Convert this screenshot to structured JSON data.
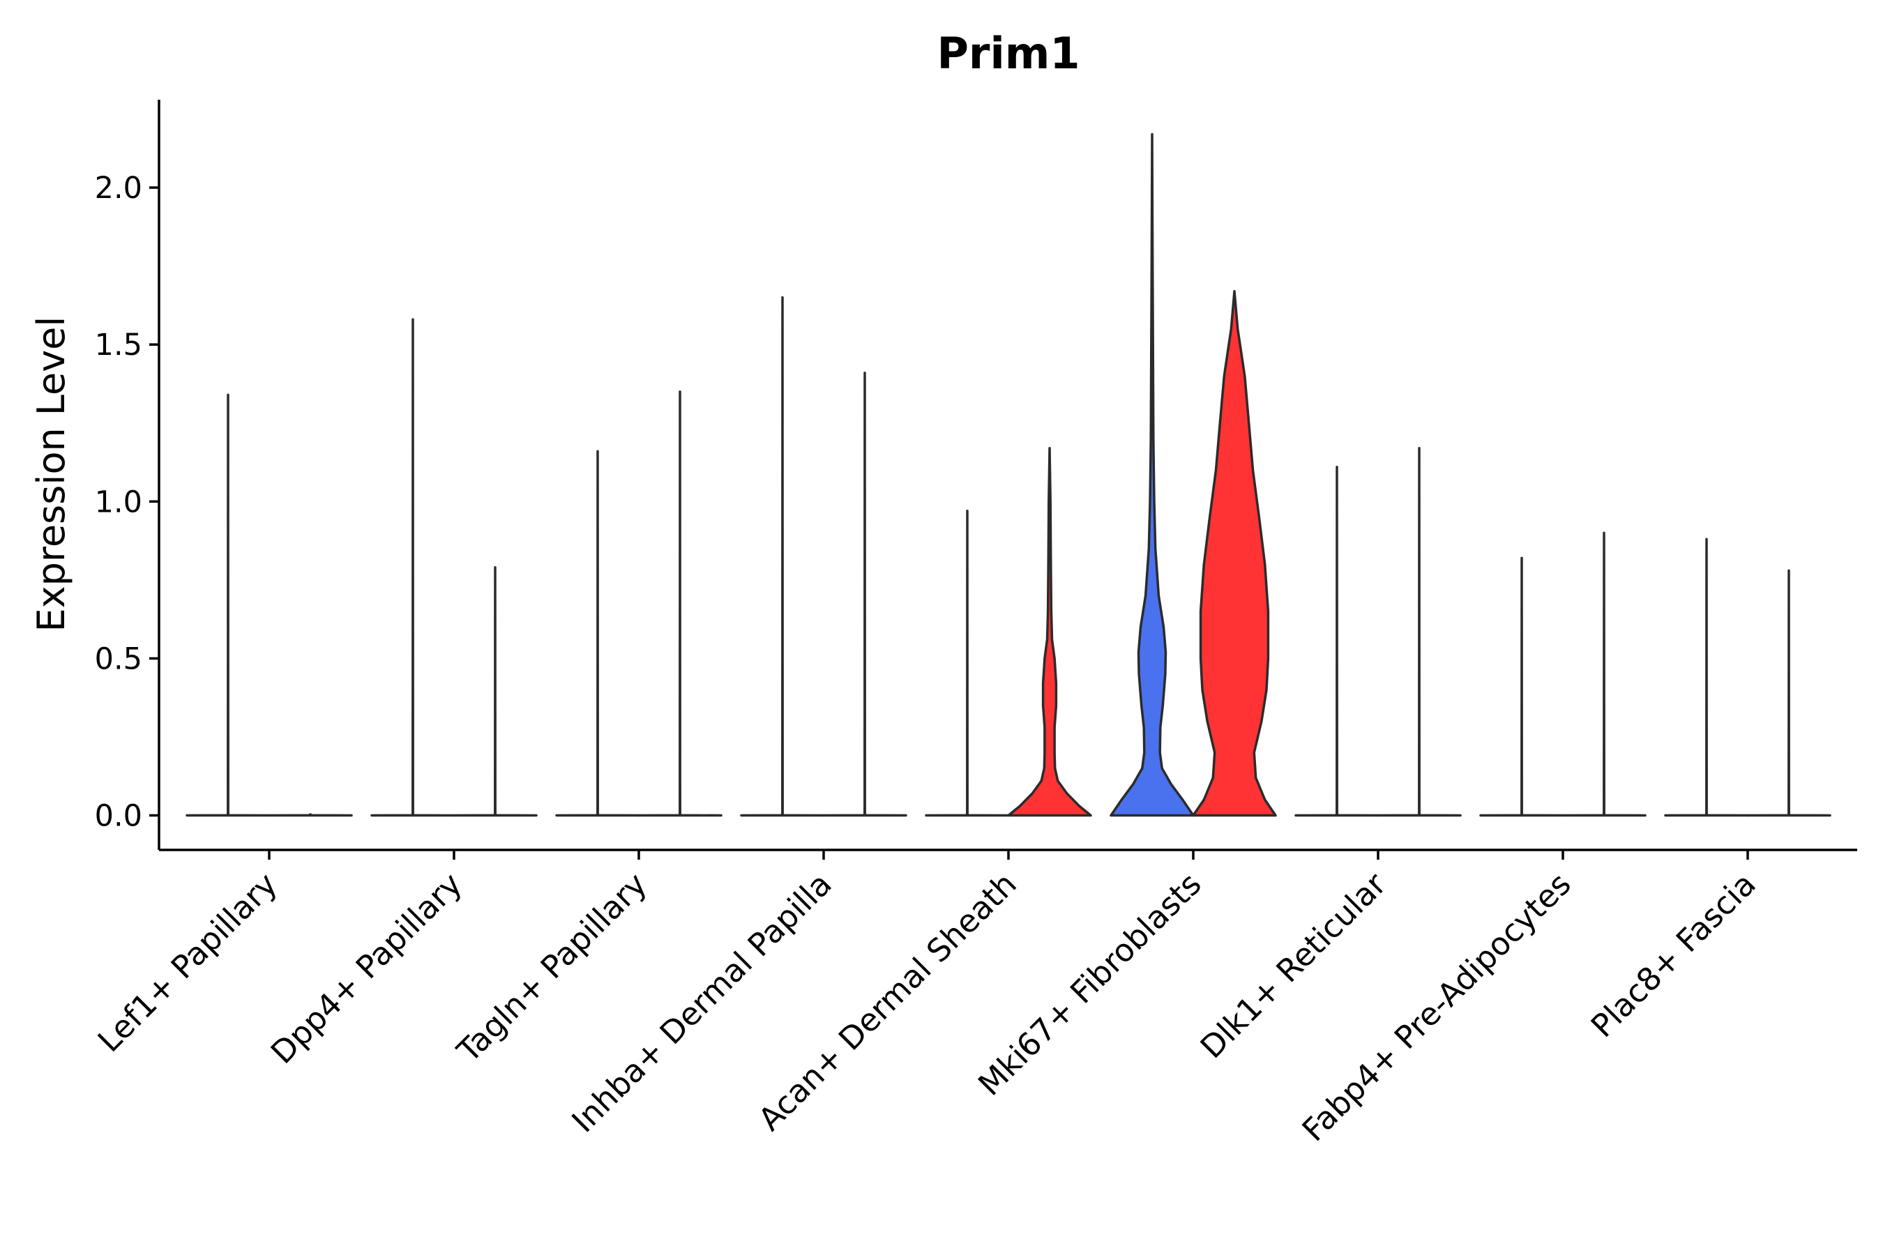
{
  "chart_data": {
    "type": "violin",
    "title": "Prim1",
    "ylabel": "Expression Level",
    "xlabel": "",
    "ylim": [
      -0.11,
      2.28
    ],
    "yticks": [
      0.0,
      0.5,
      1.0,
      1.5,
      2.0
    ],
    "ytick_labels": [
      "0.0",
      "0.5",
      "1.0",
      "1.5",
      "2.0"
    ],
    "categories": [
      "Lef1+ Papillary",
      "Dpp4+ Papillary",
      "Tagln+ Papillary",
      "Inhba+ Dermal Papilla",
      "Acan+ Dermal Sheath",
      "Mki67+ Fibroblasts",
      "Dlk1+ Reticular",
      "Fabp4+ Pre-Adipocytes",
      "Plac8+ Fascia"
    ],
    "groups": [
      "group 1",
      "group 2"
    ],
    "colors": {
      "group 1": "#4a72ee",
      "group 2": "#ff3333",
      "neutral": "#ffffff"
    },
    "violins": [
      {
        "category": "Lef1+ Papillary",
        "group": "group 1",
        "max": 1.34,
        "fill": "neutral",
        "profile": []
      },
      {
        "category": "Lef1+ Papillary",
        "group": "group 2",
        "max": 0.0,
        "fill": "neutral",
        "profile": []
      },
      {
        "category": "Dpp4+ Papillary",
        "group": "group 1",
        "max": 1.58,
        "fill": "neutral",
        "profile": []
      },
      {
        "category": "Dpp4+ Papillary",
        "group": "group 2",
        "max": 0.79,
        "fill": "neutral",
        "profile": []
      },
      {
        "category": "Tagln+ Papillary",
        "group": "group 1",
        "max": 1.16,
        "fill": "neutral",
        "profile": []
      },
      {
        "category": "Tagln+ Papillary",
        "group": "group 2",
        "max": 1.35,
        "fill": "neutral",
        "profile": []
      },
      {
        "category": "Inhba+ Dermal Papilla",
        "group": "group 1",
        "max": 1.65,
        "fill": "neutral",
        "profile": []
      },
      {
        "category": "Inhba+ Dermal Papilla",
        "group": "group 2",
        "max": 1.41,
        "fill": "neutral",
        "profile": []
      },
      {
        "category": "Acan+ Dermal Sheath",
        "group": "group 1",
        "max": 0.97,
        "fill": "neutral",
        "profile": []
      },
      {
        "category": "Acan+ Dermal Sheath",
        "group": "group 2",
        "max": 1.17,
        "fill": "group 2",
        "profile": [
          [
            0.0,
            1.0
          ],
          [
            0.03,
            0.72
          ],
          [
            0.07,
            0.42
          ],
          [
            0.11,
            0.2
          ],
          [
            0.15,
            0.13
          ],
          [
            0.2,
            0.12
          ],
          [
            0.28,
            0.12
          ],
          [
            0.35,
            0.16
          ],
          [
            0.42,
            0.16
          ],
          [
            0.5,
            0.12
          ],
          [
            0.56,
            0.06
          ],
          [
            0.65,
            0.04
          ],
          [
            0.8,
            0.03
          ],
          [
            1.0,
            0.02
          ],
          [
            1.17,
            0.0
          ]
        ]
      },
      {
        "category": "Mki67+ Fibroblasts",
        "group": "group 1",
        "max": 2.17,
        "fill": "group 1",
        "profile": [
          [
            0.0,
            1.0
          ],
          [
            0.05,
            0.74
          ],
          [
            0.1,
            0.46
          ],
          [
            0.15,
            0.24
          ],
          [
            0.2,
            0.19
          ],
          [
            0.28,
            0.2
          ],
          [
            0.35,
            0.26
          ],
          [
            0.45,
            0.32
          ],
          [
            0.52,
            0.33
          ],
          [
            0.6,
            0.28
          ],
          [
            0.7,
            0.16
          ],
          [
            0.85,
            0.08
          ],
          [
            1.0,
            0.05
          ],
          [
            1.2,
            0.03
          ],
          [
            1.5,
            0.02
          ],
          [
            1.8,
            0.01
          ],
          [
            2.17,
            0.0
          ]
        ]
      },
      {
        "category": "Mki67+ Fibroblasts",
        "group": "group 2",
        "max": 1.67,
        "fill": "group 2",
        "profile": [
          [
            0.0,
            1.0
          ],
          [
            0.05,
            0.74
          ],
          [
            0.12,
            0.52
          ],
          [
            0.2,
            0.48
          ],
          [
            0.3,
            0.66
          ],
          [
            0.4,
            0.78
          ],
          [
            0.5,
            0.82
          ],
          [
            0.65,
            0.82
          ],
          [
            0.8,
            0.74
          ],
          [
            0.95,
            0.6
          ],
          [
            1.1,
            0.45
          ],
          [
            1.25,
            0.35
          ],
          [
            1.4,
            0.25
          ],
          [
            1.55,
            0.08
          ],
          [
            1.67,
            0.0
          ]
        ]
      },
      {
        "category": "Dlk1+ Reticular",
        "group": "group 1",
        "max": 1.11,
        "fill": "neutral",
        "profile": []
      },
      {
        "category": "Dlk1+ Reticular",
        "group": "group 2",
        "max": 1.17,
        "fill": "neutral",
        "profile": []
      },
      {
        "category": "Fabp4+ Pre-Adipocytes",
        "group": "group 1",
        "max": 0.82,
        "fill": "neutral",
        "profile": []
      },
      {
        "category": "Fabp4+ Pre-Adipocytes",
        "group": "group 2",
        "max": 0.9,
        "fill": "neutral",
        "profile": []
      },
      {
        "category": "Plac8+ Fascia",
        "group": "group 1",
        "max": 0.88,
        "fill": "neutral",
        "profile": []
      },
      {
        "category": "Plac8+ Fascia",
        "group": "group 2",
        "max": 0.78,
        "fill": "neutral",
        "profile": []
      }
    ],
    "grid": false,
    "legend": "none"
  }
}
